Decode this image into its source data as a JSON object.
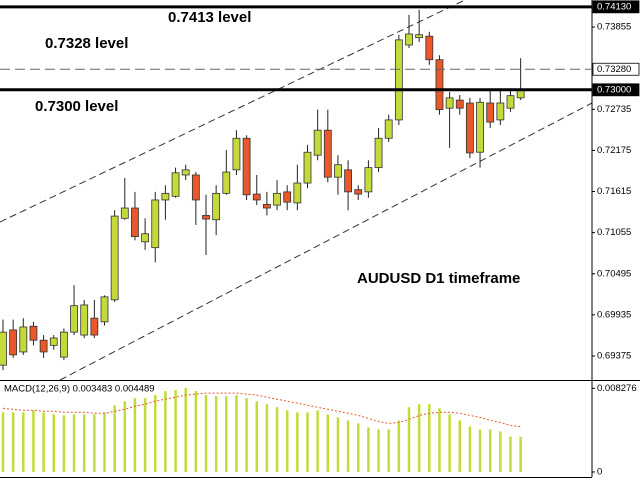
{
  "chart_data": [
    {
      "type": "candlestick",
      "annotation": "AUDUSD D1 timeframe",
      "up_color": "#c5da3a",
      "down_color": "#e8582a",
      "ylim": [
        0.69048,
        0.74223
      ],
      "yticks": [
        0.69375,
        0.69935,
        0.70495,
        0.71055,
        0.71615,
        0.72175,
        0.72735,
        0.73855
      ],
      "levels": [
        {
          "label": "0.7413 level",
          "value": 0.7413,
          "tag": "0.74130",
          "style": "solid"
        },
        {
          "label": "0.7328 level",
          "value": 0.7328,
          "tag": "0.73280",
          "style": "dashed"
        },
        {
          "label": "0.7300 level",
          "value": 0.73,
          "tag": "0.73000",
          "style": "solid"
        }
      ],
      "open": [
        0.6925,
        0.6973,
        0.6943,
        0.6978,
        0.6959,
        0.6952,
        0.6936,
        0.697,
        0.6966,
        0.6989,
        0.6984,
        0.7014,
        0.7125,
        0.7139,
        0.7093,
        0.7085,
        0.715,
        0.7155,
        0.7184,
        0.7184,
        0.7129,
        0.7123,
        0.7159,
        0.7191,
        0.7234,
        0.7158,
        0.7144,
        0.7143,
        0.7161,
        0.7146,
        0.7173,
        0.7211,
        0.7245,
        0.7181,
        0.7191,
        0.7164,
        0.7161,
        0.7194,
        0.7234,
        0.7259,
        0.7361,
        0.7371,
        0.7373,
        0.7341,
        0.7275,
        0.7286,
        0.7282,
        0.7215,
        0.7282,
        0.7259,
        0.7275,
        0.7289
      ],
      "high": [
        0.6987,
        0.6987,
        0.6989,
        0.6984,
        0.6966,
        0.6966,
        0.6975,
        0.7034,
        0.7014,
        0.7014,
        0.702,
        0.7136,
        0.718,
        0.7161,
        0.7125,
        0.7161,
        0.717,
        0.7194,
        0.7198,
        0.7188,
        0.7157,
        0.717,
        0.7218,
        0.7245,
        0.7238,
        0.7184,
        0.7161,
        0.7177,
        0.717,
        0.7198,
        0.7225,
        0.7273,
        0.7273,
        0.7211,
        0.7204,
        0.717,
        0.7204,
        0.7248,
        0.7266,
        0.7375,
        0.7402,
        0.7409,
        0.7379,
        0.7347,
        0.7297,
        0.7293,
        0.7289,
        0.7289,
        0.73,
        0.7302,
        0.7302,
        0.7343
      ],
      "low": [
        0.6918,
        0.6935,
        0.6939,
        0.6952,
        0.6935,
        0.6946,
        0.6932,
        0.6966,
        0.6962,
        0.6962,
        0.6979,
        0.7011,
        0.7123,
        0.7095,
        0.7082,
        0.7065,
        0.7123,
        0.7153,
        0.7177,
        0.7116,
        0.7075,
        0.7102,
        0.7157,
        0.7184,
        0.715,
        0.7143,
        0.7129,
        0.7136,
        0.7136,
        0.7136,
        0.7166,
        0.7204,
        0.7174,
        0.7157,
        0.7136,
        0.715,
        0.7153,
        0.7188,
        0.7229,
        0.7252,
        0.7357,
        0.7365,
        0.7334,
        0.7266,
        0.7221,
        0.7266,
        0.7207,
        0.7194,
        0.7248,
        0.7252,
        0.727,
        0.7286
      ],
      "close": [
        0.697,
        0.6939,
        0.6977,
        0.6959,
        0.6943,
        0.6962,
        0.697,
        0.7006,
        0.7007,
        0.6966,
        0.7018,
        0.7128,
        0.7139,
        0.71,
        0.7104,
        0.715,
        0.7159,
        0.7187,
        0.7191,
        0.715,
        0.7124,
        0.7159,
        0.7188,
        0.7234,
        0.7157,
        0.715,
        0.7139,
        0.7159,
        0.7147,
        0.7173,
        0.7215,
        0.7245,
        0.7181,
        0.7198,
        0.7161,
        0.7158,
        0.7194,
        0.7234,
        0.7259,
        0.7368,
        0.7376,
        0.7375,
        0.7341,
        0.7273,
        0.7289,
        0.7275,
        0.7214,
        0.7283,
        0.7256,
        0.7282,
        0.7292,
        0.73
      ]
    },
    {
      "type": "macd",
      "title": "MACD(12,26,9) 0.003483 0.004489",
      "bar_color": "#c5da3a",
      "signal_color": "#e8582a",
      "ylim": [
        -0.0005,
        0.0089
      ],
      "yticks": [
        0.008276,
        0
      ],
      "values": [
        0.0059,
        0.0059,
        0.0059,
        0.0061,
        0.0059,
        0.0057,
        0.0056,
        0.0057,
        0.0057,
        0.0057,
        0.0059,
        0.0066,
        0.007,
        0.0073,
        0.0073,
        0.0076,
        0.008,
        0.0081,
        0.0083,
        0.008,
        0.0076,
        0.0075,
        0.0075,
        0.0076,
        0.0073,
        0.007,
        0.0067,
        0.0064,
        0.0061,
        0.0059,
        0.0059,
        0.0061,
        0.0057,
        0.0054,
        0.0051,
        0.0048,
        0.0044,
        0.0042,
        0.0042,
        0.0051,
        0.0064,
        0.0067,
        0.0067,
        0.0063,
        0.0057,
        0.0051,
        0.0045,
        0.0042,
        0.0042,
        0.004,
        0.0035,
        0.003483
      ],
      "signal": [
        0.0063,
        0.0062,
        0.0061,
        0.0061,
        0.006,
        0.006,
        0.0059,
        0.0059,
        0.0059,
        0.0058,
        0.0058,
        0.006,
        0.0062,
        0.0065,
        0.0067,
        0.007,
        0.0072,
        0.0074,
        0.0076,
        0.0077,
        0.0078,
        0.0078,
        0.0078,
        0.0078,
        0.0077,
        0.0076,
        0.0074,
        0.0072,
        0.007,
        0.0068,
        0.0066,
        0.0064,
        0.0062,
        0.006,
        0.0058,
        0.0056,
        0.0053,
        0.005,
        0.0048,
        0.0049,
        0.0052,
        0.0056,
        0.0058,
        0.0059,
        0.0059,
        0.0058,
        0.0056,
        0.0054,
        0.0051,
        0.0049,
        0.0046,
        0.004489
      ]
    }
  ]
}
